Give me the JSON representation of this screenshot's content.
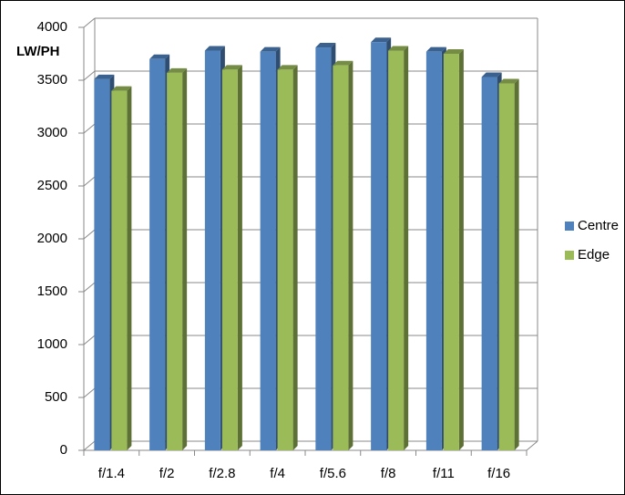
{
  "chart_data": {
    "type": "bar3d",
    "y_label": "LW/PH",
    "categories": [
      "f/1.4",
      "f/2",
      "f/2.8",
      "f/4",
      "f/5.6",
      "f/8",
      "f/11",
      "f/16"
    ],
    "series": [
      {
        "name": "Centre",
        "color": "#4f81bd",
        "values": [
          3510,
          3700,
          3780,
          3770,
          3810,
          3860,
          3770,
          3530
        ]
      },
      {
        "name": "Edge",
        "color": "#9bbb59",
        "values": [
          3400,
          3570,
          3600,
          3600,
          3640,
          3780,
          3750,
          3470
        ]
      }
    ],
    "ylim": [
      0,
      4000
    ],
    "yticks": [
      0,
      500,
      1000,
      1500,
      2000,
      2500,
      3000,
      3500,
      4000
    ],
    "grid": true,
    "legend": "right"
  }
}
